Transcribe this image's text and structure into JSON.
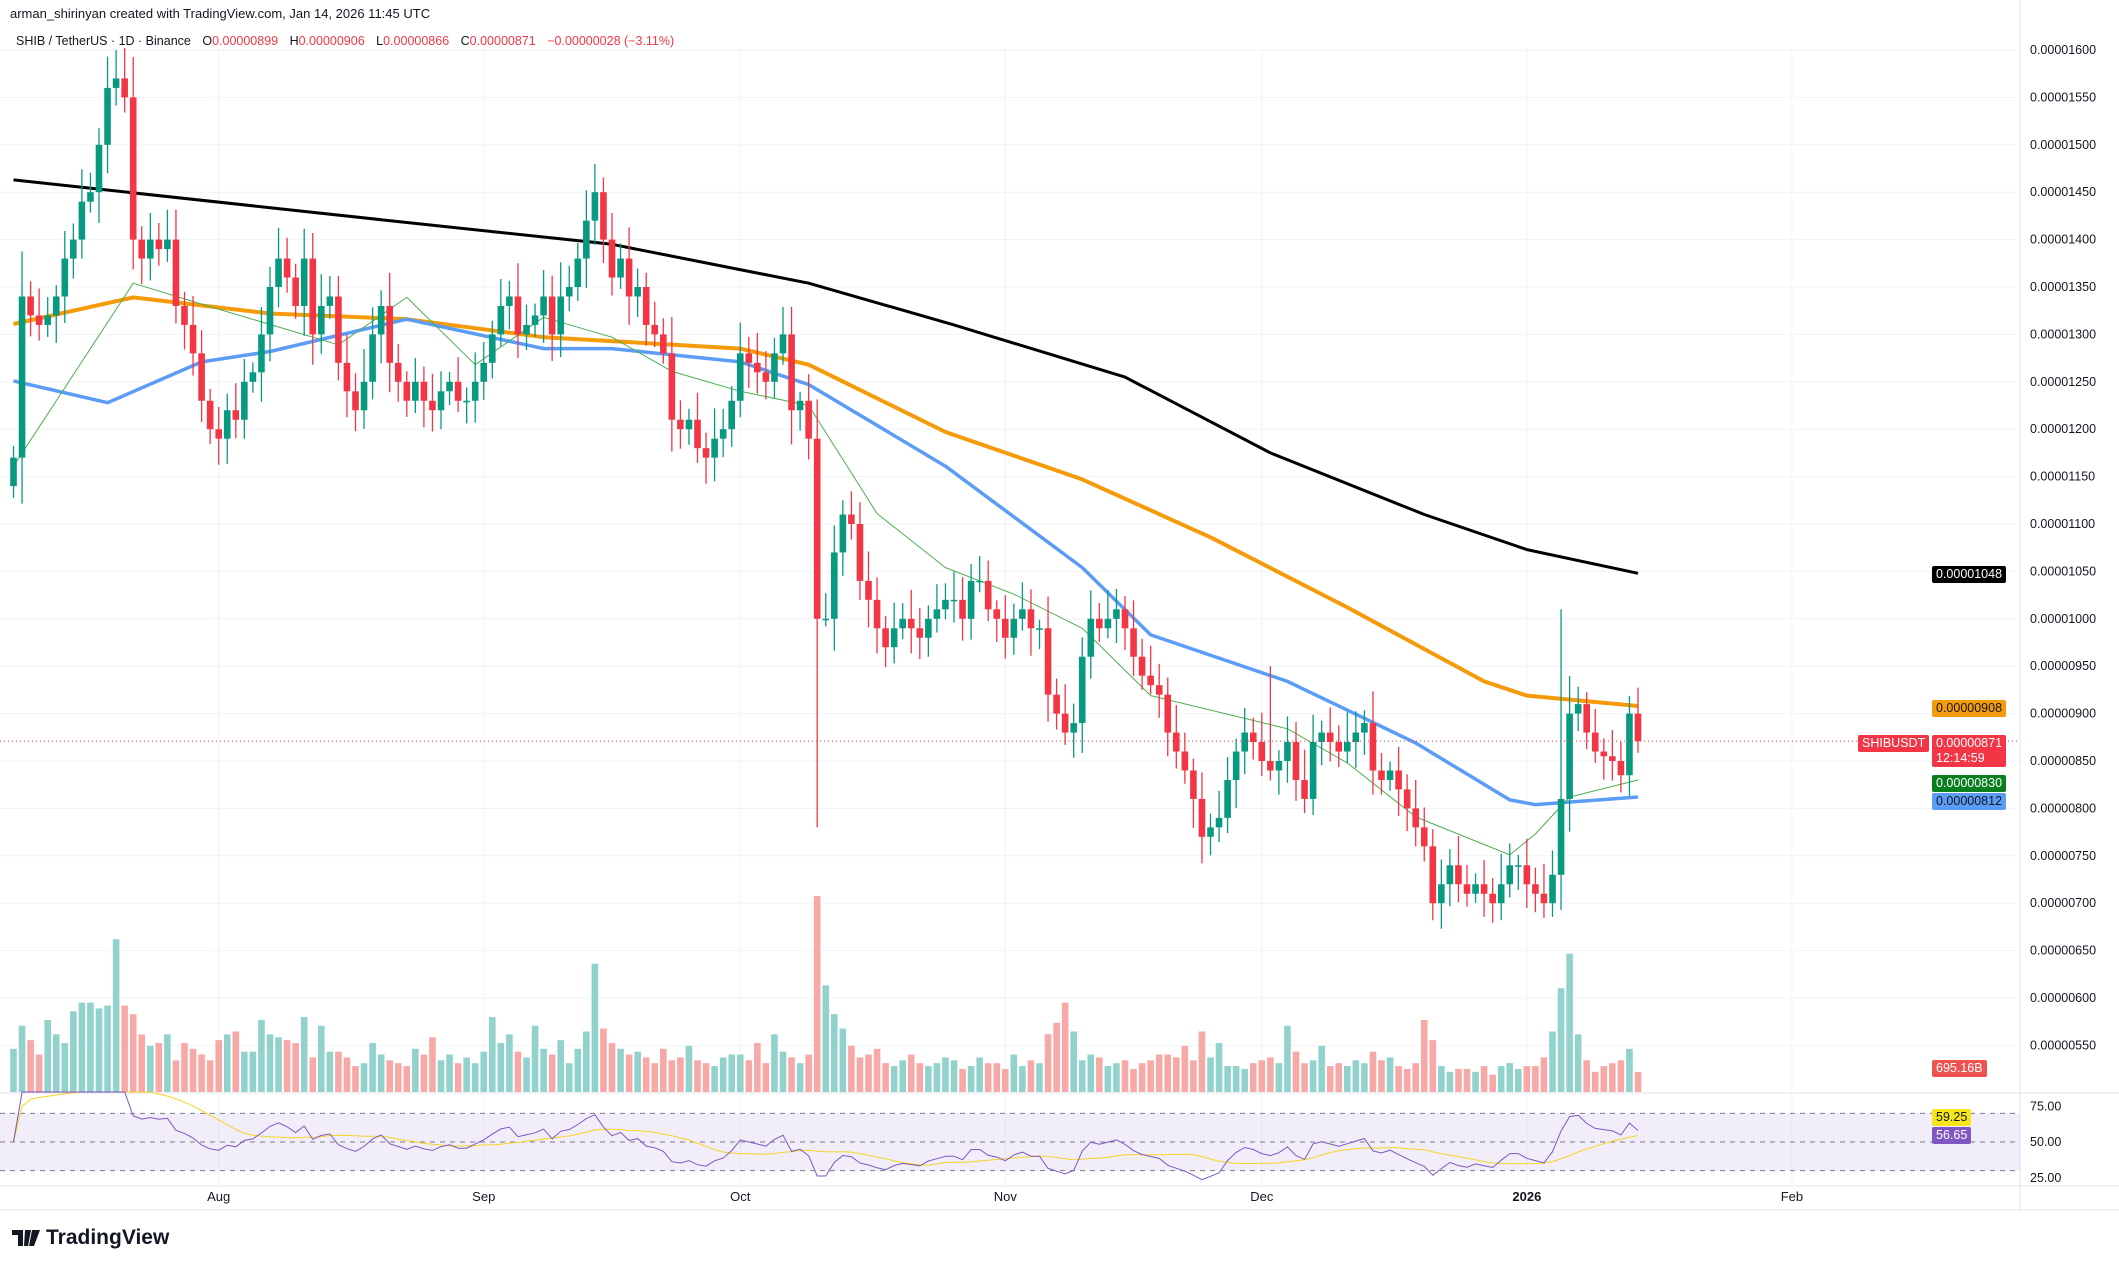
{
  "header": {
    "credit": "arman_shirinyan created with TradingView.com, Jan 14, 2026 11:45 UTC"
  },
  "legend": {
    "symbol": "SHIB / TetherUS · 1D · Binance",
    "o_key": "O",
    "open": "0.00000899",
    "h_key": "H",
    "high": "0.00000906",
    "l_key": "L",
    "low": "0.00000866",
    "c_key": "C",
    "close": "0.00000871",
    "change": "−0.00000028 (−3.11%)"
  },
  "tags": {
    "ma_black": "0.00001048",
    "ma_orange": "0.00000908",
    "symbol_tag": "SHIBUSDT",
    "last_price": "0.00000871",
    "countdown": "12:14:59",
    "ma_green": "0.00000830",
    "ma_blue": "0.00000812",
    "volume": "695.16B",
    "rsi_ma": "59.25",
    "rsi": "56.65"
  },
  "footer": {
    "logo": "TradingView"
  },
  "colors": {
    "up": "#089981",
    "down": "#f23645",
    "black_ma": "#000000",
    "orange_ma": "#f59b0a",
    "blue_ma": "#5b9cf6",
    "green_ma": "#4caf50",
    "rsi": "#7e57c2",
    "rsi_ma": "#f5d426"
  },
  "chart_data": {
    "type": "candlestick",
    "title": "SHIB / TetherUS · 1D · Binance",
    "unit_note": "prices in 1e-8 USDT",
    "first_day": "Jul 8, 2025",
    "closes": [
      1170,
      1340,
      1320,
      1310,
      1320,
      1340,
      1380,
      1400,
      1440,
      1450,
      1500,
      1560,
      1570,
      1550,
      1400,
      1380,
      1400,
      1390,
      1400,
      1330,
      1310,
      1280,
      1230,
      1200,
      1190,
      1220,
      1210,
      1250,
      1260,
      1300,
      1350,
      1380,
      1360,
      1330,
      1380,
      1300,
      1330,
      1340,
      1270,
      1240,
      1220,
      1250,
      1300,
      1330,
      1270,
      1250,
      1230,
      1250,
      1230,
      1220,
      1240,
      1250,
      1230,
      1230,
      1250,
      1270,
      1300,
      1330,
      1340,
      1300,
      1310,
      1320,
      1340,
      1300,
      1340,
      1350,
      1380,
      1420,
      1450,
      1400,
      1360,
      1380,
      1340,
      1350,
      1310,
      1300,
      1280,
      1210,
      1200,
      1210,
      1180,
      1170,
      1190,
      1200,
      1230,
      1280,
      1270,
      1260,
      1250,
      1280,
      1300,
      1220,
      1230,
      1190,
      1000,
      1000,
      1070,
      1110,
      1100,
      1040,
      1020,
      990,
      970,
      990,
      1000,
      990,
      980,
      1000,
      1010,
      1020,
      1020,
      1000,
      1040,
      1040,
      1010,
      1000,
      980,
      1000,
      1010,
      990,
      990,
      920,
      900,
      880,
      890,
      960,
      1000,
      990,
      1000,
      1010,
      990,
      960,
      940,
      930,
      920,
      880,
      860,
      840,
      810,
      770,
      780,
      790,
      830,
      860,
      880,
      870,
      850,
      840,
      850,
      870,
      830,
      810,
      870,
      880,
      870,
      860,
      870,
      880,
      890,
      840,
      830,
      840,
      820,
      800,
      780,
      760,
      700,
      720,
      740,
      720,
      710,
      720,
      710,
      700,
      720,
      740,
      740,
      720,
      710,
      700,
      730,
      810,
      900,
      910,
      880,
      860,
      855,
      850,
      835,
      900,
      871
    ],
    "special_wicks": [
      {
        "day": 94,
        "low": 780
      },
      {
        "day": 68,
        "high": 1480
      },
      {
        "day": 12,
        "high": 1600
      },
      {
        "day": 181,
        "high": 1010
      },
      {
        "day": 147,
        "high": 950
      }
    ],
    "volume_billions": [
      1500,
      2300,
      1800,
      1300,
      2500,
      2000,
      1700,
      2800,
      3100,
      3100,
      2900,
      3000,
      5300,
      3000,
      2700,
      2000,
      1600,
      1700,
      2000,
      1100,
      1700,
      1500,
      1300,
      1100,
      1800,
      2000,
      2100,
      1400,
      1400,
      2500,
      2000,
      1900,
      1800,
      1700,
      2600,
      1200,
      2300,
      1400,
      1400,
      1200,
      900,
      1000,
      1700,
      1300,
      1100,
      1000,
      900,
      1500,
      1300,
      1900,
      1100,
      1300,
      1000,
      1200,
      1000,
      1400,
      2600,
      1700,
      2000,
      1400,
      1200,
      2300,
      1500,
      1300,
      1800,
      1000,
      1500,
      2100,
      4450,
      2200,
      1700,
      1500,
      1300,
      1400,
      1200,
      1000,
      1500,
      1100,
      1200,
      1600,
      1100,
      1000,
      900,
      1200,
      1300,
      1300,
      1100,
      1700,
      1000,
      2000,
      1400,
      1200,
      1000,
      1300,
      6800,
      3700,
      2700,
      2200,
      1600,
      1200,
      1300,
      1500,
      1000,
      900,
      1100,
      1300,
      1000,
      900,
      1000,
      1200,
      1100,
      800,
      900,
      1200,
      1000,
      1000,
      800,
      1300,
      900,
      1100,
      1000,
      2000,
      2400,
      3100,
      2100,
      1100,
      1300,
      1200,
      900,
      1000,
      1100,
      800,
      1000,
      1100,
      1300,
      1300,
      1200,
      1600,
      1100,
      2100,
      1200,
      1700,
      900,
      900,
      800,
      1000,
      1100,
      1200,
      1000,
      2300,
      1400,
      1000,
      1100,
      1600,
      900,
      1000,
      900,
      1100,
      1000,
      1400,
      1100,
      1200,
      900,
      800,
      1000,
      2500,
      1800,
      900,
      700,
      800,
      800,
      700,
      900,
      600,
      900,
      1000,
      800,
      900,
      900,
      1200,
      2100,
      3600,
      4800,
      2000,
      1100,
      700,
      900,
      1000,
      1100,
      1500,
      695
    ],
    "moving_averages": [
      {
        "name": "black",
        "points": [
          [
            0,
            1463
          ],
          [
            46,
            1418
          ],
          [
            70,
            1395
          ],
          [
            93,
            1354
          ],
          [
            110,
            1310
          ],
          [
            130,
            1255
          ],
          [
            147,
            1175
          ],
          [
            165,
            1110
          ],
          [
            177,
            1073
          ],
          [
            190,
            1048
          ]
        ]
      },
      {
        "name": "orange",
        "points": [
          [
            0,
            1311
          ],
          [
            14,
            1339
          ],
          [
            30,
            1322
          ],
          [
            46,
            1316
          ],
          [
            62,
            1297
          ],
          [
            85,
            1285
          ],
          [
            93,
            1268
          ],
          [
            109,
            1197
          ],
          [
            125,
            1147
          ],
          [
            140,
            1086
          ],
          [
            156,
            1012
          ],
          [
            172,
            934
          ],
          [
            177,
            919
          ],
          [
            190,
            908
          ]
        ]
      },
      {
        "name": "blue",
        "points": [
          [
            0,
            1251
          ],
          [
            11,
            1228
          ],
          [
            22,
            1271
          ],
          [
            30,
            1282
          ],
          [
            46,
            1316
          ],
          [
            62,
            1285
          ],
          [
            70,
            1285
          ],
          [
            85,
            1271
          ],
          [
            93,
            1247
          ],
          [
            109,
            1161
          ],
          [
            125,
            1054
          ],
          [
            133,
            983
          ],
          [
            149,
            934
          ],
          [
            164,
            869
          ],
          [
            175,
            809
          ],
          [
            178,
            804
          ],
          [
            190,
            812
          ]
        ]
      },
      {
        "name": "green",
        "points": [
          [
            0,
            1161
          ],
          [
            14,
            1354
          ],
          [
            22,
            1332
          ],
          [
            38,
            1289
          ],
          [
            46,
            1339
          ],
          [
            54,
            1268
          ],
          [
            62,
            1318
          ],
          [
            70,
            1297
          ],
          [
            77,
            1261
          ],
          [
            85,
            1240
          ],
          [
            93,
            1225
          ],
          [
            101,
            1111
          ],
          [
            109,
            1054
          ],
          [
            117,
            1026
          ],
          [
            125,
            990
          ],
          [
            133,
            919
          ],
          [
            149,
            884
          ],
          [
            156,
            848
          ],
          [
            164,
            791
          ],
          [
            175,
            751
          ],
          [
            178,
            773
          ],
          [
            182,
            812
          ],
          [
            190,
            830
          ]
        ]
      }
    ],
    "y_ticks": [
      "0.00001600",
      "0.00001550",
      "0.00001500",
      "0.00001450",
      "0.00001400",
      "0.00001350",
      "0.00001300",
      "0.00001250",
      "0.00001200",
      "0.00001150",
      "0.00001100",
      "0.00001050",
      "0.00001000",
      "0.00000950",
      "0.00000900",
      "0.00000850",
      "0.00000800",
      "0.00000750",
      "0.00000700",
      "0.00000650",
      "0.00000600",
      "0.00000550"
    ],
    "y_tick_values": [
      1600,
      1550,
      1500,
      1450,
      1400,
      1350,
      1300,
      1250,
      1200,
      1150,
      1100,
      1050,
      1000,
      950,
      900,
      850,
      800,
      750,
      700,
      650,
      600,
      550
    ],
    "ylim": [
      550,
      1600
    ],
    "x_ticks": [
      {
        "label": "Aug",
        "day": 24
      },
      {
        "label": "Sep",
        "day": 55
      },
      {
        "label": "Oct",
        "day": 85
      },
      {
        "label": "Nov",
        "day": 116
      },
      {
        "label": "Dec",
        "day": 146
      },
      {
        "label": "2026",
        "day": 177
      },
      {
        "label": "Feb",
        "day": 208
      }
    ],
    "rsi": {
      "period": 14,
      "levels": [
        70,
        50,
        30
      ],
      "tick_labels": [
        "75.00",
        "50.00",
        "25.00"
      ],
      "last": 56.65,
      "ma_last": 59.25
    }
  }
}
